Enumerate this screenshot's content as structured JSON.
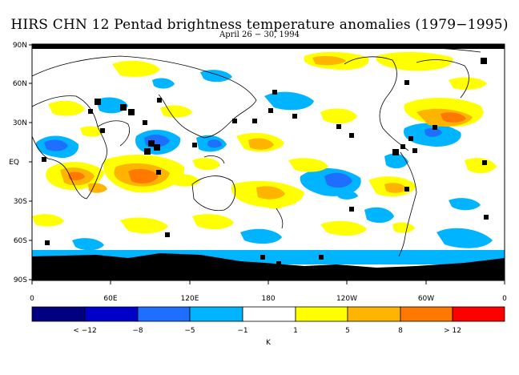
{
  "title": "HIRS CHN 12 Pentad brightness temperature anomalies (1979−1995)",
  "subtitle": "April 26 − 30, 1994",
  "map": {
    "lat_ticks": [
      "90N",
      "60N",
      "30N",
      "EQ",
      "30S",
      "60S",
      "90S"
    ],
    "lon_ticks": [
      "0",
      "60E",
      "120E",
      "180",
      "120W",
      "60W",
      "0"
    ]
  },
  "colorbar": {
    "colors": [
      "#000080",
      "#0000c8",
      "#1e6eff",
      "#00b4ff",
      "#ffffff",
      "#ffff00",
      "#ffb400",
      "#ff7800",
      "#ff0000"
    ],
    "labels": [
      "< −12",
      "−8",
      "−5",
      "−1",
      "1",
      "5",
      "8",
      "> 12"
    ],
    "unit": "K"
  },
  "colors": {
    "land_outline": "#000000",
    "missing_data": "#000000"
  }
}
